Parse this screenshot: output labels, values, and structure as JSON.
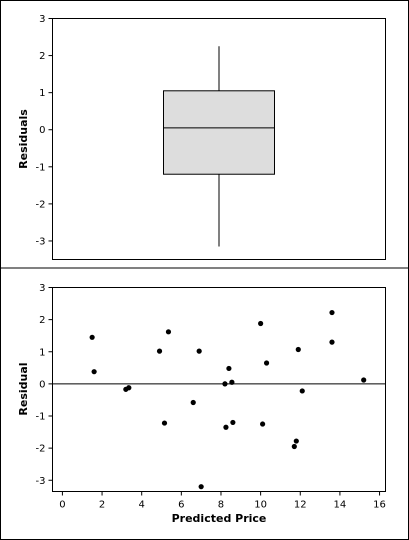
{
  "chart_data": [
    {
      "type": "box",
      "title": "",
      "ylabel": "Residuals",
      "ylim": [
        -3.5,
        3.0
      ],
      "yticks": [
        -3,
        -2,
        -1,
        0,
        1,
        2,
        3
      ],
      "box": {
        "whisker_low": -3.15,
        "q1": -1.2,
        "median": 0.05,
        "q3": 1.05,
        "whisker_high": 2.25
      },
      "box_fill": "#dddddd"
    },
    {
      "type": "scatter",
      "title": "",
      "xlabel": "Predicted Price",
      "ylabel": "Residual",
      "xlim": [
        -0.5,
        16.3
      ],
      "ylim": [
        -3.35,
        3.0
      ],
      "xticks": [
        0,
        2,
        4,
        6,
        8,
        10,
        12,
        14,
        16
      ],
      "yticks": [
        -3,
        -2,
        -1,
        0,
        1,
        2,
        3
      ],
      "reference_line_y": 0,
      "points": [
        {
          "x": 1.5,
          "y": 1.45
        },
        {
          "x": 1.6,
          "y": 0.38
        },
        {
          "x": 3.2,
          "y": -0.17
        },
        {
          "x": 3.35,
          "y": -0.12
        },
        {
          "x": 4.9,
          "y": 1.02
        },
        {
          "x": 5.15,
          "y": -1.22
        },
        {
          "x": 5.35,
          "y": 1.62
        },
        {
          "x": 6.6,
          "y": -0.58
        },
        {
          "x": 6.9,
          "y": 1.02
        },
        {
          "x": 7.0,
          "y": -3.2
        },
        {
          "x": 8.2,
          "y": 0.0
        },
        {
          "x": 8.25,
          "y": -1.35
        },
        {
          "x": 8.4,
          "y": 0.48
        },
        {
          "x": 8.55,
          "y": 0.05
        },
        {
          "x": 8.6,
          "y": -1.2
        },
        {
          "x": 10.0,
          "y": 1.88
        },
        {
          "x": 10.1,
          "y": -1.25
        },
        {
          "x": 10.3,
          "y": 0.65
        },
        {
          "x": 11.7,
          "y": -1.95
        },
        {
          "x": 11.8,
          "y": -1.78
        },
        {
          "x": 11.9,
          "y": 1.07
        },
        {
          "x": 12.1,
          "y": -0.22
        },
        {
          "x": 13.6,
          "y": 2.22
        },
        {
          "x": 13.6,
          "y": 1.3
        },
        {
          "x": 15.2,
          "y": 0.12
        }
      ]
    }
  ]
}
